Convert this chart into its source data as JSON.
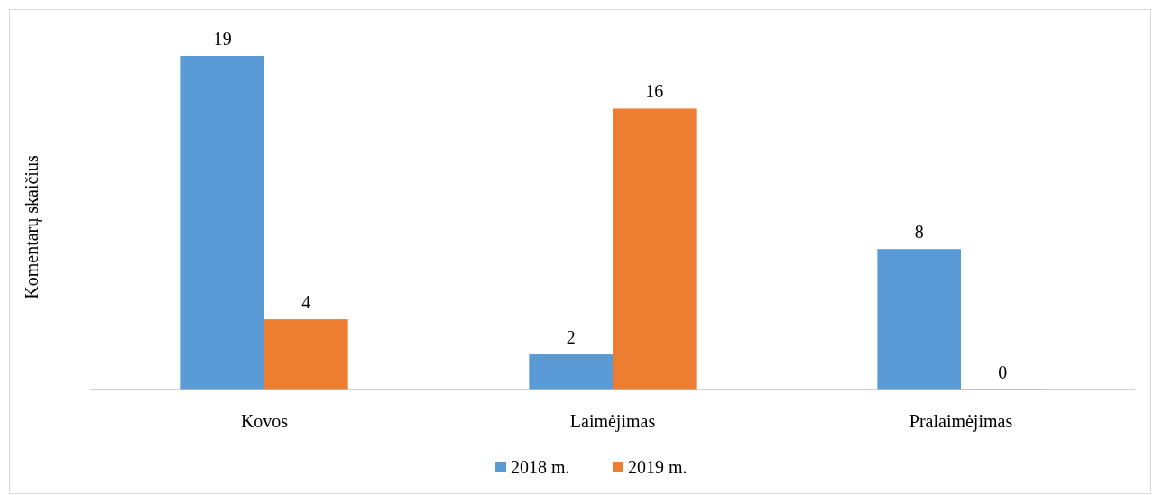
{
  "chart_data": {
    "type": "bar",
    "ylabel": "Komentarų skaičius",
    "categories": [
      "Kovos",
      "Laimėjimas",
      "Pralaimėjimas"
    ],
    "series": [
      {
        "name": "2018 m.",
        "color": "#5b9bd5",
        "values": [
          19,
          2,
          8
        ]
      },
      {
        "name": "2019 m.",
        "color": "#ed7d31",
        "values": [
          4,
          16,
          0
        ]
      }
    ],
    "data_labels": true,
    "legend": "bottom"
  }
}
